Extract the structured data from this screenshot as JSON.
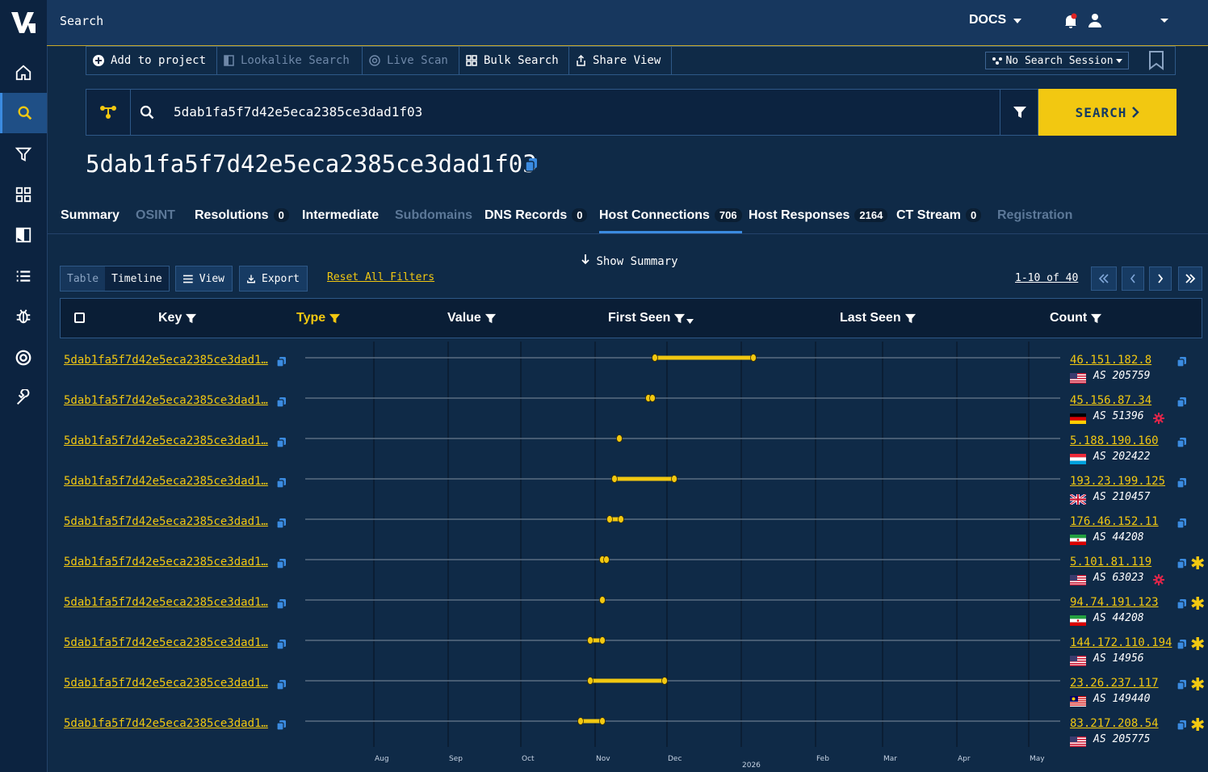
{
  "app": {
    "title": "Search"
  },
  "nav": {
    "docs_label": "DOCS"
  },
  "toolbar": {
    "add_project": "Add to project",
    "lookalike": "Lookalike Search",
    "live_scan": "Live Scan",
    "bulk_search": "Bulk Search",
    "share_view": "Share View",
    "session": "No Search Session"
  },
  "search": {
    "query": "5dab1fa5f7d42e5eca2385ce3dad1f03",
    "button": "SEARCH"
  },
  "page": {
    "title": "5dab1fa5f7d42e5eca2385ce3dad1f03"
  },
  "tabs": [
    {
      "label": "Summary",
      "count": null,
      "state": "normal"
    },
    {
      "label": "OSINT",
      "count": null,
      "state": "disabled"
    },
    {
      "label": "Resolutions",
      "count": "0",
      "state": "normal"
    },
    {
      "label": "Intermediate",
      "count": null,
      "state": "normal"
    },
    {
      "label": "Subdomains",
      "count": null,
      "state": "disabled"
    },
    {
      "label": "DNS Records",
      "count": "0",
      "state": "normal"
    },
    {
      "label": "Host Connections",
      "count": "706",
      "state": "active"
    },
    {
      "label": "Host Responses",
      "count": "2164",
      "state": "normal"
    },
    {
      "label": "CT Stream",
      "count": "0",
      "state": "normal"
    },
    {
      "label": "Registration",
      "count": null,
      "state": "disabled"
    }
  ],
  "controls": {
    "show_summary": "Show Summary",
    "toggle_table": "Table",
    "toggle_timeline": "Timeline",
    "view": "View",
    "export": "Export",
    "reset_filters": "Reset All Filters",
    "pager": "1-10 of 40"
  },
  "columns": {
    "key": "Key",
    "type": "Type",
    "value": "Value",
    "first_seen": "First Seen",
    "last_seen": "Last Seen",
    "count": "Count"
  },
  "timeline_axis": [
    "Aug",
    "Sep",
    "Oct",
    "Nov",
    "Dec",
    "2026",
    "Feb",
    "Mar",
    "Apr",
    "May"
  ],
  "rows": [
    {
      "key": "5dab1fa5f7d42e5eca2385ce3dad1…",
      "ip": "46.151.182.8",
      "asn": "AS 205759",
      "flag": "us",
      "gear": false,
      "star": false
    },
    {
      "key": "5dab1fa5f7d42e5eca2385ce3dad1…",
      "ip": "45.156.87.34",
      "asn": "AS 51396",
      "flag": "de",
      "gear": true,
      "star": false
    },
    {
      "key": "5dab1fa5f7d42e5eca2385ce3dad1…",
      "ip": "5.188.190.160",
      "asn": "AS 202422",
      "flag": "lu",
      "gear": false,
      "star": false
    },
    {
      "key": "5dab1fa5f7d42e5eca2385ce3dad1…",
      "ip": "193.23.199.125",
      "asn": "AS 210457",
      "flag": "gb",
      "gear": false,
      "star": false
    },
    {
      "key": "5dab1fa5f7d42e5eca2385ce3dad1…",
      "ip": "176.46.152.11",
      "asn": "AS 44208",
      "flag": "ir",
      "gear": false,
      "star": false
    },
    {
      "key": "5dab1fa5f7d42e5eca2385ce3dad1…",
      "ip": "5.101.81.119",
      "asn": "AS 63023",
      "flag": "us",
      "gear": true,
      "star": true
    },
    {
      "key": "5dab1fa5f7d42e5eca2385ce3dad1…",
      "ip": "94.74.191.123",
      "asn": "AS 44208",
      "flag": "ir",
      "gear": false,
      "star": true
    },
    {
      "key": "5dab1fa5f7d42e5eca2385ce3dad1…",
      "ip": "144.172.110.194",
      "asn": "AS 14956",
      "flag": "us",
      "gear": false,
      "star": true
    },
    {
      "key": "5dab1fa5f7d42e5eca2385ce3dad1…",
      "ip": "23.26.237.117",
      "asn": "AS 149440",
      "flag": "my",
      "gear": false,
      "star": true
    },
    {
      "key": "5dab1fa5f7d42e5eca2385ce3dad1…",
      "ip": "83.217.208.54",
      "asn": "AS 205775",
      "flag": "us",
      "gear": false,
      "star": true
    }
  ],
  "colors": {
    "accent": "#f2c811",
    "bg": "#0f2a47",
    "link_blue": "#3b8be0"
  }
}
